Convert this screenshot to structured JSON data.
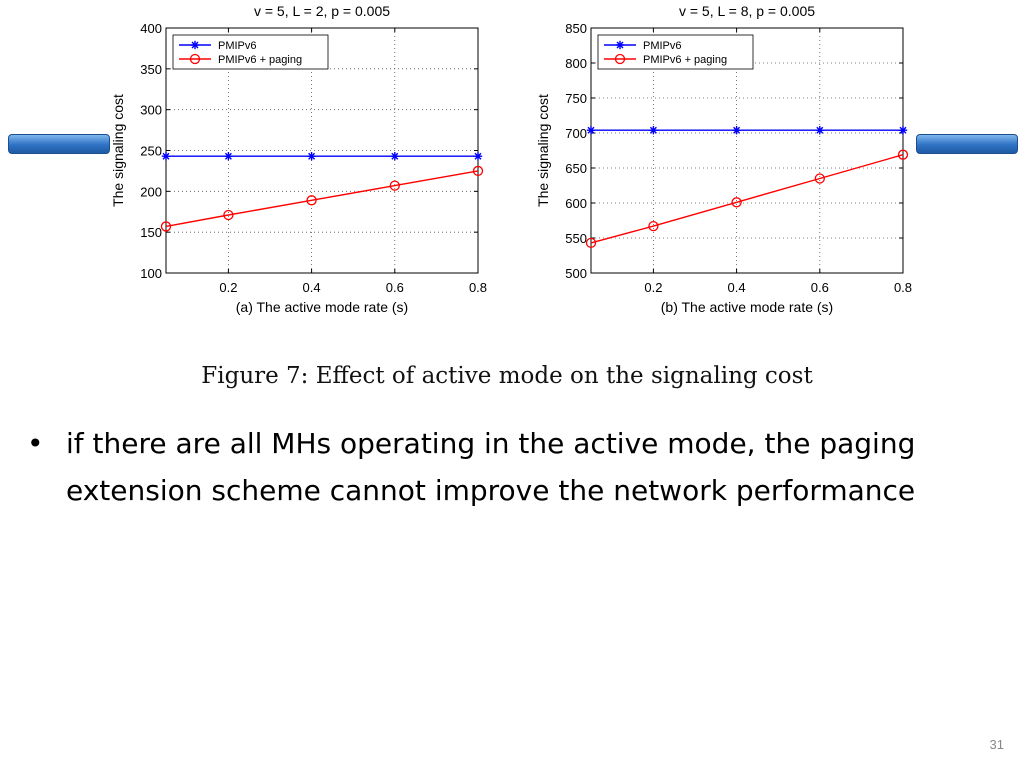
{
  "slide": {
    "caption": "Figure 7:  Effect of active mode on the signaling cost",
    "bullet_symbol": "•",
    "bullet_text": "if there are all MHs operating in the active mode, the paging extension scheme cannot improve the network performance",
    "slide_number": "31"
  },
  "colors": {
    "pmipv6": "#0000ff",
    "paging": "#ff0000",
    "decor_bar": "#2f72c4"
  },
  "chart_data": [
    {
      "type": "line",
      "title": "v = 5, L = 2, p = 0.005",
      "xlabel": "(a) The active mode rate (s)",
      "ylabel": "The signaling cost",
      "xlim": [
        0.05,
        0.8
      ],
      "ylim": [
        100,
        400
      ],
      "xticks": [
        0.2,
        0.4,
        0.6,
        0.8
      ],
      "xtick_labels": [
        "0.2",
        "0.4",
        "0.6",
        "0.8"
      ],
      "yticks": [
        100,
        150,
        200,
        250,
        300,
        350,
        400
      ],
      "ytick_labels": [
        "100",
        "150",
        "200",
        "250",
        "300",
        "350",
        "400"
      ],
      "grid": true,
      "legend_position": "top-left",
      "series": [
        {
          "name": "PMIPv6",
          "marker": "star",
          "color": "#0000ff",
          "x": [
            0.05,
            0.2,
            0.4,
            0.6,
            0.8
          ],
          "values": [
            243,
            243,
            243,
            243,
            243
          ]
        },
        {
          "name": "PMIPv6 + paging",
          "marker": "circle",
          "color": "#ff0000",
          "x": [
            0.05,
            0.2,
            0.4,
            0.6,
            0.8
          ],
          "values": [
            157,
            171,
            189,
            207,
            225
          ]
        }
      ]
    },
    {
      "type": "line",
      "title": "v = 5, L = 8, p = 0.005",
      "xlabel": "(b) The active mode rate (s)",
      "ylabel": "The signaling cost",
      "xlim": [
        0.05,
        0.8
      ],
      "ylim": [
        500,
        850
      ],
      "xticks": [
        0.2,
        0.4,
        0.6,
        0.8
      ],
      "xtick_labels": [
        "0.2",
        "0.4",
        "0.6",
        "0.8"
      ],
      "yticks": [
        500,
        550,
        600,
        650,
        700,
        750,
        800,
        850
      ],
      "ytick_labels": [
        "500",
        "550",
        "600",
        "650",
        "700",
        "750",
        "800",
        "850"
      ],
      "grid": true,
      "legend_position": "top-left",
      "series": [
        {
          "name": "PMIPv6",
          "marker": "star",
          "color": "#0000ff",
          "x": [
            0.05,
            0.2,
            0.4,
            0.6,
            0.8
          ],
          "values": [
            704,
            704,
            704,
            704,
            704
          ]
        },
        {
          "name": "PMIPv6 + paging",
          "marker": "circle",
          "color": "#ff0000",
          "x": [
            0.05,
            0.2,
            0.4,
            0.6,
            0.8
          ],
          "values": [
            543,
            567,
            601,
            635,
            669
          ]
        }
      ]
    }
  ]
}
